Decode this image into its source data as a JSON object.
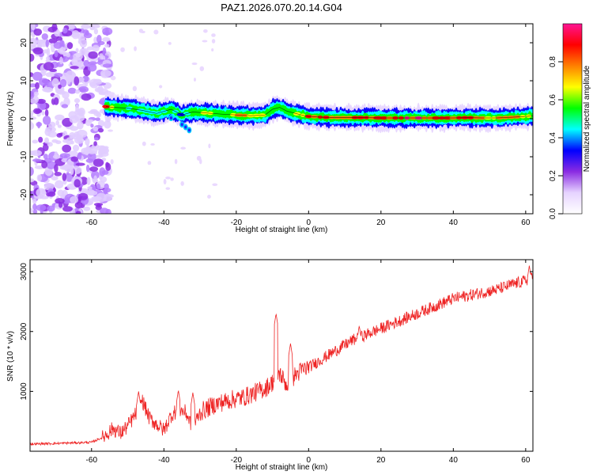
{
  "figure_title": "PAZ1.2026.070.20.14.G04",
  "chart_data": [
    {
      "type": "heatmap",
      "title": "PAZ1.2026.070.20.14.G04",
      "xlabel": "Height of straight line (km)",
      "ylabel": "Frequency (Hz)",
      "xlim": [
        -77,
        62
      ],
      "ylim": [
        -25,
        25
      ],
      "xticks": [
        -60,
        -40,
        -20,
        0,
        20,
        40,
        60
      ],
      "yticks": [
        -20,
        -10,
        0,
        10,
        20
      ],
      "colorbar": {
        "label": "Normalized spectral amplitude",
        "range": [
          0.0,
          1.0
        ],
        "ticks": [
          0.0,
          0.2,
          0.4,
          0.6,
          0.8
        ],
        "tick_labels": [
          "0.0",
          "0.2",
          "0.4",
          "0.6",
          "0.8"
        ],
        "colors": [
          "#ffffff",
          "#e6d3ff",
          "#8a2be2",
          "#0000ff",
          "#00ffff",
          "#00ff00",
          "#ffff00",
          "#ff8000",
          "#ff0000",
          "#ff1493"
        ]
      },
      "noise_region_x": [
        -77,
        -55
      ],
      "ridge": {
        "x": [
          -56,
          -54,
          -50,
          -46,
          -42,
          -38,
          -35,
          -32,
          -28,
          -24,
          -20,
          -16,
          -12,
          -10,
          -8,
          -6,
          -4,
          -2,
          0,
          4,
          8,
          12,
          16,
          20,
          24,
          28,
          32,
          36,
          40,
          44,
          48,
          52,
          56,
          60,
          62
        ],
        "frequency": [
          3.2,
          3.0,
          2.8,
          2.2,
          1.4,
          2.5,
          1.0,
          1.8,
          1.5,
          1.2,
          1.0,
          0.8,
          1.0,
          2.5,
          3.0,
          2.0,
          1.5,
          1.0,
          0.6,
          0.4,
          0.3,
          0.3,
          0.3,
          0.2,
          0.2,
          0.2,
          0.2,
          0.2,
          0.2,
          0.3,
          0.2,
          0.2,
          0.4,
          0.6,
          0.8
        ],
        "amplitude": [
          0.85,
          0.6,
          0.55,
          0.5,
          0.45,
          0.55,
          0.4,
          0.6,
          0.65,
          0.7,
          0.75,
          0.8,
          0.7,
          0.6,
          0.55,
          0.6,
          0.7,
          0.75,
          0.8,
          0.85,
          0.88,
          0.9,
          0.9,
          0.92,
          0.95,
          0.95,
          0.92,
          0.9,
          0.88,
          0.85,
          0.85,
          0.8,
          0.8,
          0.75,
          0.7
        ]
      }
    },
    {
      "type": "line",
      "xlabel": "Height of straight line (km)",
      "ylabel": "SNR (10 * v/v)",
      "xlim": [
        -77,
        62
      ],
      "ylim": [
        0,
        3200
      ],
      "xticks": [
        -60,
        -40,
        -20,
        0,
        20,
        40,
        60
      ],
      "yticks": [
        1000,
        2000,
        3000
      ],
      "series": [
        {
          "name": "SNR",
          "color": "#ee2222",
          "x": [
            -77,
            -70,
            -65,
            -60,
            -57,
            -54,
            -52,
            -50,
            -48,
            -46,
            -44,
            -42,
            -40,
            -38,
            -36,
            -34,
            -32,
            -30,
            -26,
            -22,
            -20,
            -18,
            -16,
            -14,
            -12,
            -10,
            -9,
            -8,
            -6,
            -4,
            -2,
            0,
            4,
            8,
            12,
            16,
            20,
            24,
            28,
            32,
            36,
            40,
            44,
            48,
            52,
            56,
            60,
            62
          ],
          "y": [
            120,
            130,
            140,
            150,
            230,
            380,
            300,
            420,
            600,
            850,
            550,
            450,
            350,
            600,
            700,
            650,
            400,
            650,
            780,
            850,
            880,
            900,
            950,
            1000,
            1050,
            1150,
            1250,
            1300,
            1100,
            1250,
            1350,
            1400,
            1550,
            1700,
            1850,
            1950,
            2050,
            2150,
            2250,
            2350,
            2450,
            2550,
            2600,
            2650,
            2700,
            2780,
            2850,
            2900
          ],
          "spikes": [
            {
              "x": -47,
              "y": 1000
            },
            {
              "x": -36,
              "y": 1020
            },
            {
              "x": -32,
              "y": 980
            },
            {
              "x": -9,
              "y": 2300
            },
            {
              "x": -5,
              "y": 1800
            },
            {
              "x": 14,
              "y": 2100
            },
            {
              "x": 61,
              "y": 3100
            }
          ]
        }
      ]
    }
  ]
}
